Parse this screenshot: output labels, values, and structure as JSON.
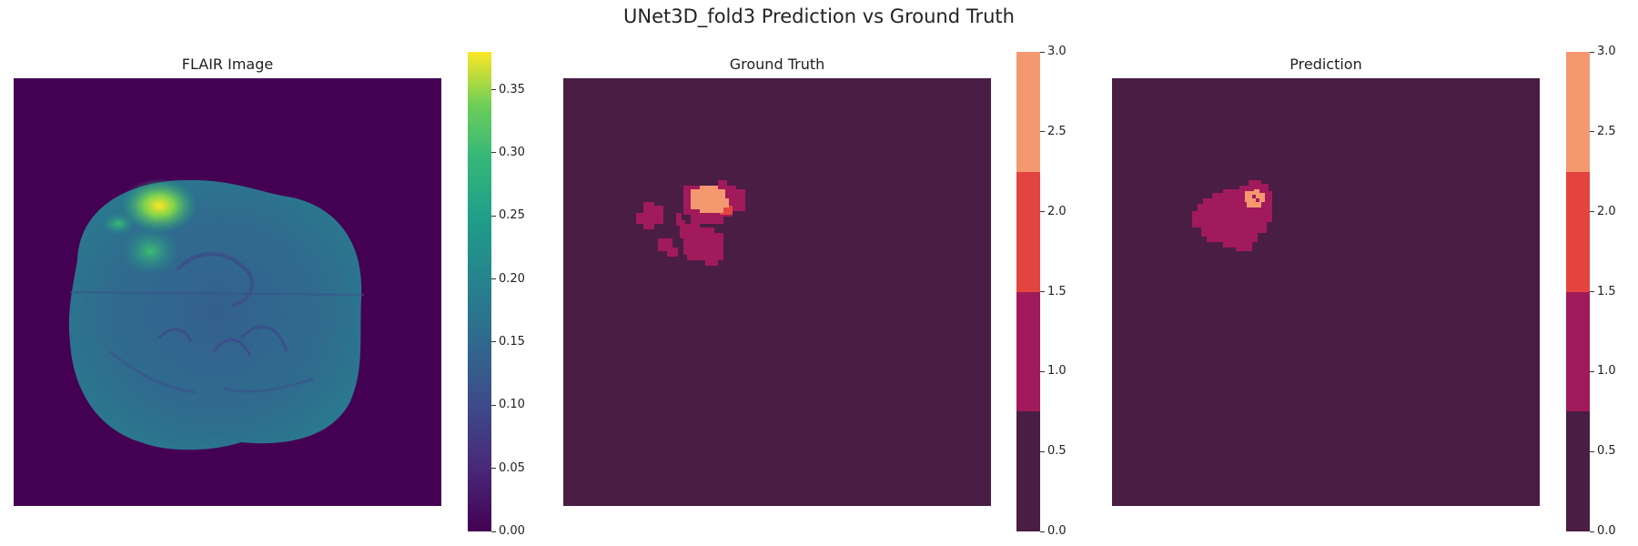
{
  "figure_title": "UNet3D_fold3 Prediction vs Ground Truth",
  "chart_data": [
    {
      "type": "heatmap",
      "title": "FLAIR Image",
      "description_kind": "MRI FLAIR slice",
      "colormap": "viridis",
      "colorbar": {
        "vmin": 0.0,
        "vmax": 0.38,
        "ticks": [
          "0.00",
          "0.05",
          "0.10",
          "0.15",
          "0.20",
          "0.25",
          "0.30",
          "0.35"
        ],
        "tick_values": [
          0.0,
          0.05,
          0.1,
          0.15,
          0.2,
          0.25,
          0.3,
          0.35
        ]
      },
      "grid": false
    },
    {
      "type": "heatmap",
      "title": "Ground Truth",
      "colormap": "rocket-discrete",
      "classes": [
        0,
        1,
        2,
        3
      ],
      "class_colors": [
        "#4a1d45",
        "#a11a5b",
        "#e4443f",
        "#f4996f"
      ],
      "colorbar": {
        "vmin": 0.0,
        "vmax": 3.0,
        "ticks": [
          "0.0",
          "0.5",
          "1.0",
          "1.5",
          "2.0",
          "2.5",
          "3.0"
        ],
        "tick_values": [
          0.0,
          0.5,
          1.0,
          1.5,
          2.0,
          2.5,
          3.0
        ]
      },
      "grid": false
    },
    {
      "type": "heatmap",
      "title": "Prediction",
      "colormap": "rocket-discrete",
      "classes": [
        0,
        1,
        2,
        3
      ],
      "class_colors": [
        "#4a1d45",
        "#a11a5b",
        "#e4443f",
        "#f4996f"
      ],
      "colorbar": {
        "vmin": 0.0,
        "vmax": 3.0,
        "ticks": [
          "0.0",
          "0.5",
          "1.0",
          "1.5",
          "2.0",
          "2.5",
          "3.0"
        ],
        "tick_values": [
          0.0,
          0.5,
          1.0,
          1.5,
          2.0,
          2.5,
          3.0
        ]
      },
      "grid": false
    }
  ]
}
